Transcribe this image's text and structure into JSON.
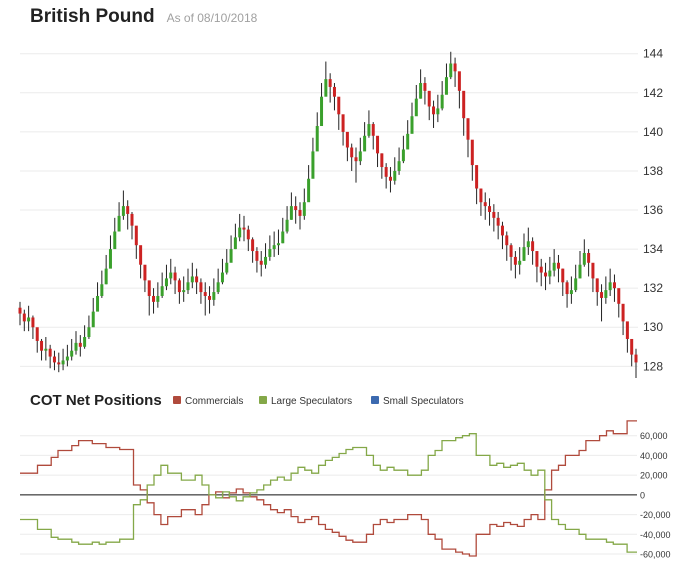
{
  "header": {
    "title": "British Pound",
    "as_of": "As of 08/10/2018"
  },
  "colors": {
    "up_candle": "#3aa02c",
    "down_candle": "#cc2222",
    "wick": "#222222",
    "commercials": "#b04a3c",
    "large_speculators": "#84a848",
    "small_speculators": "#3c6ab0",
    "gridline": "#ebebeb",
    "zero_line": "#111111"
  },
  "chart_data": [
    {
      "type": "candlestick",
      "title": "British Pound",
      "subtitle": "As of 08/10/2018",
      "ylim": [
        127.3,
        144.6
      ],
      "yticks": [
        128,
        130,
        132,
        134,
        136,
        138,
        140,
        142,
        144
      ],
      "grid": true,
      "closes": [
        130.7,
        130.3,
        130.5,
        130.0,
        129.3,
        128.8,
        128.9,
        128.5,
        128.2,
        128.1,
        128.3,
        128.5,
        128.8,
        129.2,
        129.0,
        129.5,
        130.0,
        130.8,
        131.6,
        132.2,
        133.0,
        134.0,
        134.9,
        135.7,
        136.2,
        135.8,
        135.2,
        134.2,
        133.2,
        132.4,
        131.6,
        131.3,
        131.6,
        132.1,
        132.5,
        132.8,
        132.4,
        131.8,
        131.9,
        132.3,
        132.6,
        132.3,
        131.8,
        131.6,
        131.4,
        131.8,
        132.3,
        132.8,
        133.3,
        134.0,
        134.6,
        135.1,
        135.0,
        134.5,
        133.9,
        133.4,
        133.2,
        133.6,
        134.0,
        134.2,
        134.3,
        134.9,
        135.5,
        136.2,
        136.0,
        135.7,
        136.4,
        137.6,
        139.0,
        140.3,
        141.8,
        142.7,
        142.3,
        141.8,
        140.9,
        140.0,
        139.2,
        138.7,
        138.5,
        139.0,
        139.8,
        140.4,
        139.8,
        138.9,
        138.2,
        137.7,
        137.5,
        138.0,
        138.5,
        139.1,
        139.9,
        140.8,
        141.7,
        142.5,
        142.1,
        141.3,
        140.9,
        141.2,
        141.9,
        142.8,
        143.5,
        143.1,
        142.1,
        140.7,
        139.6,
        138.3,
        137.1,
        136.4,
        136.2,
        135.9,
        135.6,
        135.2,
        134.7,
        134.2,
        133.6,
        133.2,
        133.4,
        134.1,
        134.4,
        133.9,
        133.1,
        132.8,
        132.6,
        132.9,
        133.3,
        133.0,
        132.3,
        131.7,
        131.9,
        132.5,
        133.2,
        133.8,
        133.3,
        132.5,
        131.8,
        131.5,
        131.9,
        132.3,
        132.0,
        131.2,
        130.3,
        129.4,
        128.6,
        128.2
      ],
      "lows": [
        130.1,
        129.8,
        129.8,
        129.4,
        128.7,
        128.3,
        128.3,
        127.9,
        127.8,
        127.7,
        127.8,
        128.0,
        128.3,
        128.6,
        128.5,
        128.9,
        129.4,
        130.1,
        130.9,
        131.5,
        132.2,
        133.3,
        134.2,
        135.0,
        135.5,
        135.0,
        134.5,
        133.5,
        132.5,
        131.8,
        130.6,
        130.7,
        131.0,
        131.5,
        131.9,
        132.2,
        131.7,
        131.2,
        131.3,
        131.7,
        132.0,
        131.7,
        131.2,
        130.6,
        130.7,
        131.1,
        131.7,
        132.2,
        132.7,
        133.4,
        134.0,
        134.4,
        134.4,
        133.9,
        133.3,
        132.8,
        132.6,
        133.0,
        133.4,
        133.6,
        133.7,
        134.3,
        134.8,
        135.5,
        135.3,
        135.0,
        135.5,
        136.6,
        138.1,
        139.4,
        141.0,
        141.9,
        141.5,
        141.1,
        140.1,
        139.3,
        138.5,
        138.0,
        137.4,
        138.3,
        139.1,
        139.7,
        139.1,
        138.2,
        137.6,
        137.1,
        136.9,
        137.3,
        137.8,
        138.4,
        139.2,
        140.0,
        140.9,
        141.7,
        141.4,
        140.6,
        140.2,
        140.5,
        141.1,
        142.0,
        142.7,
        142.3,
        141.2,
        139.8,
        138.7,
        137.5,
        136.3,
        135.7,
        135.5,
        135.2,
        134.9,
        134.5,
        134.0,
        133.4,
        132.9,
        132.5,
        132.7,
        133.4,
        133.7,
        133.2,
        132.3,
        132.1,
        131.9,
        132.2,
        132.6,
        132.3,
        131.6,
        131.0,
        131.2,
        131.8,
        132.5,
        133.1,
        132.6,
        131.8,
        131.1,
        130.3,
        131.2,
        131.6,
        131.3,
        130.5,
        129.6,
        128.7,
        128.0,
        127.4
      ],
      "highs": [
        131.3,
        130.9,
        131.1,
        130.6,
        129.9,
        129.4,
        129.5,
        129.1,
        128.8,
        128.7,
        128.9,
        129.1,
        129.4,
        129.8,
        129.6,
        130.1,
        130.6,
        131.5,
        132.3,
        132.9,
        133.7,
        134.7,
        135.6,
        136.4,
        137.0,
        136.5,
        135.9,
        134.9,
        133.9,
        133.1,
        132.3,
        132.0,
        132.3,
        132.8,
        133.2,
        133.5,
        133.1,
        132.5,
        132.6,
        133.0,
        133.3,
        133.0,
        132.5,
        132.3,
        132.1,
        132.5,
        133.0,
        133.5,
        134.0,
        134.7,
        135.3,
        135.8,
        135.7,
        135.2,
        134.6,
        134.1,
        133.9,
        134.3,
        134.7,
        134.9,
        135.0,
        135.6,
        136.2,
        136.9,
        136.7,
        136.4,
        137.1,
        138.3,
        139.7,
        141.0,
        142.5,
        143.6,
        143.0,
        142.5,
        141.6,
        140.7,
        139.9,
        139.4,
        139.2,
        139.7,
        140.5,
        141.1,
        140.5,
        139.6,
        138.9,
        138.4,
        138.2,
        138.7,
        139.2,
        139.8,
        140.6,
        141.5,
        142.4,
        143.2,
        142.8,
        142.0,
        141.6,
        141.9,
        142.6,
        143.5,
        144.1,
        143.8,
        142.8,
        141.4,
        140.3,
        139.0,
        137.8,
        137.1,
        136.9,
        136.6,
        136.3,
        135.9,
        135.4,
        134.9,
        134.3,
        133.9,
        134.1,
        134.8,
        135.1,
        134.6,
        133.8,
        133.5,
        133.3,
        133.6,
        134.0,
        133.7,
        133.0,
        132.4,
        132.6,
        133.2,
        133.9,
        134.5,
        134.0,
        133.2,
        132.5,
        132.2,
        132.6,
        133.0,
        132.7,
        131.9,
        131.0,
        130.1,
        129.3,
        128.9
      ]
    },
    {
      "type": "line",
      "title": "COT Net Positions",
      "ylim": [
        -62000,
        80000
      ],
      "yticks": [
        60000,
        40000,
        20000,
        0,
        -20000,
        -40000,
        -60000
      ],
      "ytick_labels": [
        "60,000",
        "40,000",
        "20,000",
        "0",
        "-20,000",
        "-40,000",
        "-60,000"
      ],
      "legend": "top",
      "series": [
        {
          "name": "Commercials",
          "values": [
            22000,
            22000,
            22000,
            30000,
            30000,
            38000,
            45000,
            45000,
            50000,
            55000,
            55000,
            52000,
            52000,
            48000,
            48000,
            46000,
            46000,
            10000,
            5000,
            -8000,
            -20000,
            -30000,
            -22000,
            -22000,
            -15000,
            -15000,
            -20000,
            -10000,
            0,
            3000,
            -3000,
            2000,
            6000,
            2000,
            -2000,
            -5000,
            -10000,
            -15000,
            -18000,
            -15000,
            -22000,
            -28000,
            -25000,
            -22000,
            -30000,
            -35000,
            -38000,
            -42000,
            -46000,
            -48000,
            -48000,
            -40000,
            -30000,
            -25000,
            -28000,
            -25000,
            -25000,
            -20000,
            -20000,
            -25000,
            -40000,
            -45000,
            -55000,
            -55000,
            -58000,
            -60000,
            -62000,
            -40000,
            -40000,
            -30000,
            -32000,
            -28000,
            -30000,
            -32000,
            -25000,
            -20000,
            -25000,
            5000,
            25000,
            30000,
            40000,
            40000,
            45000,
            55000,
            55000,
            60000,
            65000,
            62000,
            62000,
            75000,
            75000
          ]
        },
        {
          "name": "Large Speculators",
          "values": [
            -25000,
            -25000,
            -25000,
            -35000,
            -35000,
            -43000,
            -45000,
            -45000,
            -48000,
            -50000,
            -50000,
            -48000,
            -50000,
            -48000,
            -48000,
            -45000,
            -45000,
            -10000,
            -5000,
            10000,
            20000,
            30000,
            22000,
            22000,
            15000,
            15000,
            20000,
            10000,
            0,
            -3000,
            3000,
            -2000,
            -6000,
            -2000,
            2000,
            5000,
            10000,
            15000,
            18000,
            15000,
            22000,
            28000,
            25000,
            22000,
            30000,
            35000,
            38000,
            42000,
            46000,
            48000,
            48000,
            40000,
            30000,
            25000,
            28000,
            25000,
            25000,
            20000,
            20000,
            25000,
            40000,
            45000,
            55000,
            55000,
            58000,
            60000,
            62000,
            40000,
            40000,
            30000,
            32000,
            28000,
            30000,
            32000,
            25000,
            20000,
            25000,
            -5000,
            -25000,
            -30000,
            -35000,
            -35000,
            -40000,
            -45000,
            -45000,
            -45000,
            -48000,
            -50000,
            -50000,
            -58000,
            -58000
          ]
        },
        {
          "name": "Small Speculators",
          "values": []
        }
      ]
    }
  ]
}
